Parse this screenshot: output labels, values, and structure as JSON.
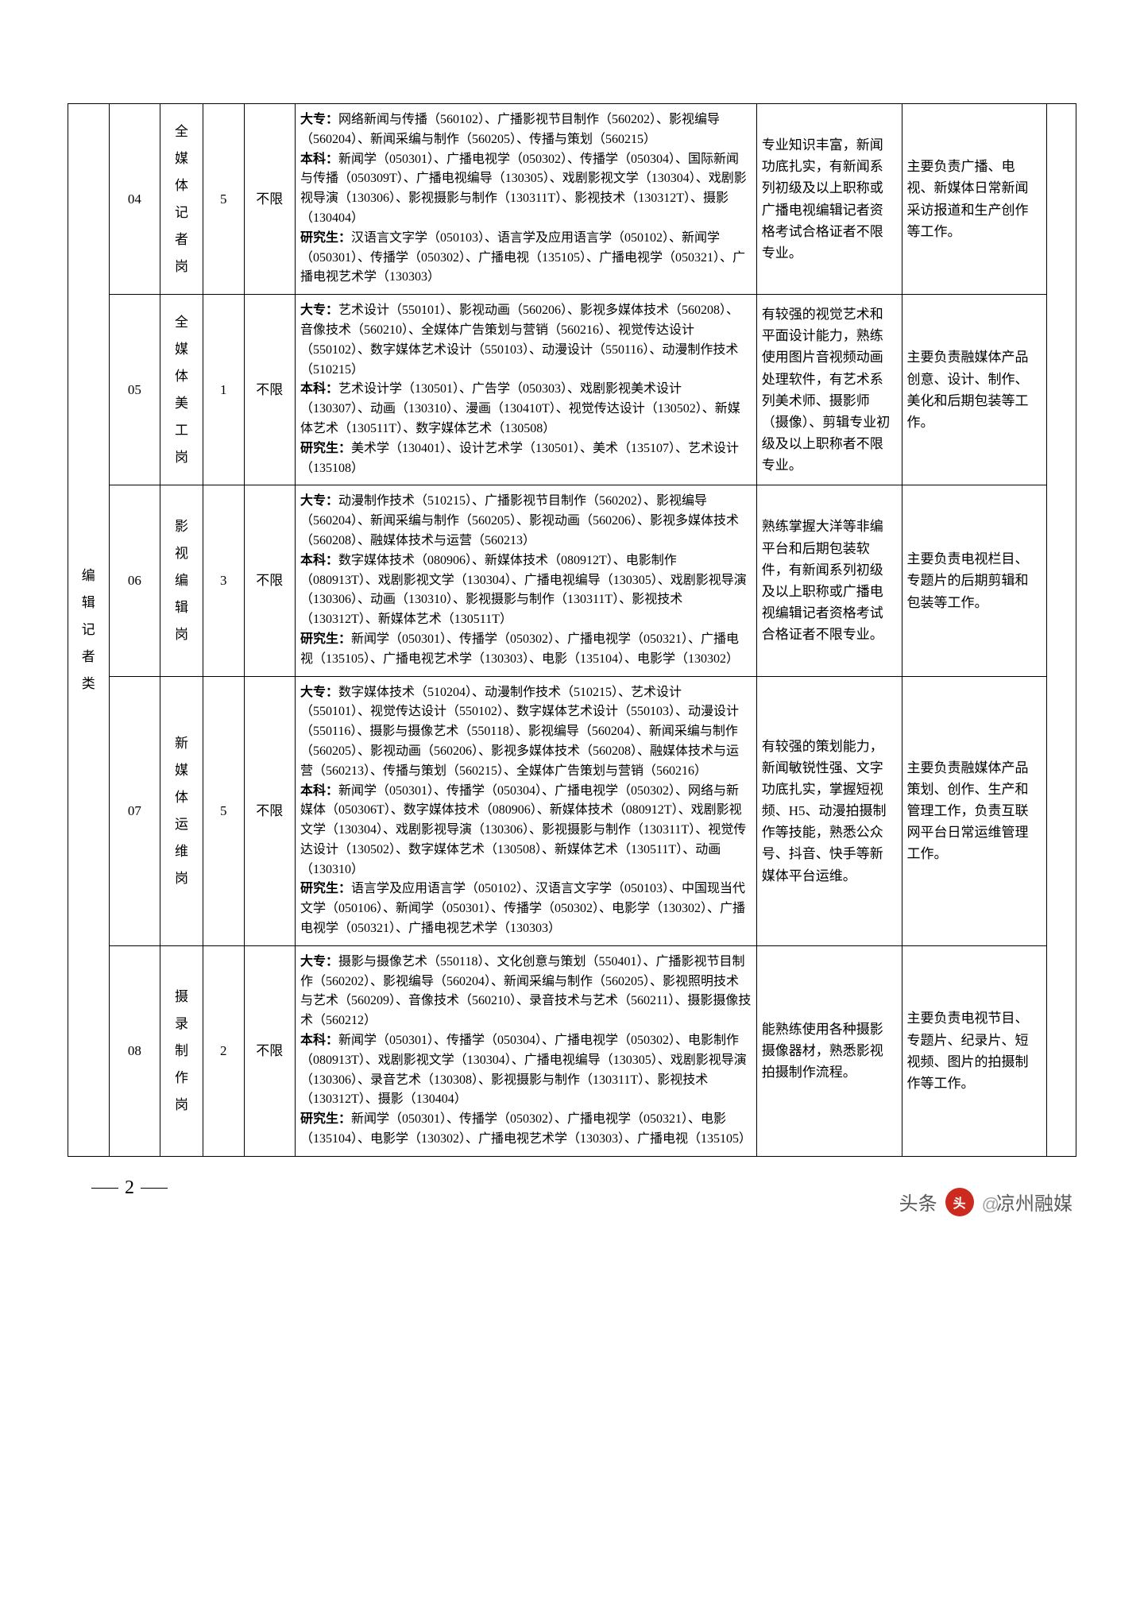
{
  "category": "编辑记者类",
  "page_number": "2",
  "watermark_source": "头条",
  "watermark_at": "@",
  "watermark_name": "凉州融媒",
  "rows": [
    {
      "code": "04",
      "position": "全媒体记者岗",
      "count": "5",
      "limit": "不限",
      "spec": "大专：网络新闻与传播（560102）、广播影视节目制作（560202）、影视编导（560204）、新闻采编与制作（560205）、传播与策划（560215）\n本科：新闻学（050301）、广播电视学（050302）、传播学（050304）、国际新闻与传播（050309T）、广播电视编导（130305）、戏剧影视文学（130304）、戏剧影视导演（130306）、影视摄影与制作（130311T）、影视技术（130312T）、摄影（130404）\n研究生：汉语言文字学（050103）、语言学及应用语言学（050102）、新闻学（050301）、传播学（050302）、广播电视（135105）、广播电视学（050321）、广播电视艺术学（130303）",
      "req": "专业知识丰富，新闻功底扎实，有新闻系列初级及以上职称或广播电视编辑记者资格考试合格证者不限专业。",
      "duty": "主要负责广播、电视、新媒体日常新闻采访报道和生产创作等工作。"
    },
    {
      "code": "05",
      "position": "全媒体美工岗",
      "count": "1",
      "limit": "不限",
      "spec": "大专：艺术设计（550101）、影视动画（560206）、影视多媒体技术（560208）、音像技术（560210）、全媒体广告策划与营销（560216）、视觉传达设计（550102）、数字媒体艺术设计（550103）、动漫设计（550116）、动漫制作技术（510215）\n本科：艺术设计学（130501）、广告学（050303）、戏剧影视美术设计（130307）、动画（130310）、漫画（130410T）、视觉传达设计（130502）、新媒体艺术（130511T）、数字媒体艺术（130508）\n研究生：美术学（130401）、设计艺术学（130501）、美术（135107）、艺术设计（135108）",
      "req": "有较强的视觉艺术和平面设计能力，熟练使用图片音视频动画处理软件，有艺术系列美术师、摄影师（摄像）、剪辑专业初级及以上职称者不限专业。",
      "duty": "主要负责融媒体产品创意、设计、制作、美化和后期包装等工作。"
    },
    {
      "code": "06",
      "position": "影视编辑岗",
      "count": "3",
      "limit": "不限",
      "spec": "大专：动漫制作技术（510215）、广播影视节目制作（560202）、影视编导（560204）、新闻采编与制作（560205）、影视动画（560206）、影视多媒体技术（560208）、融媒体技术与运营（560213）\n本科：数字媒体技术（080906）、新媒体技术（080912T）、电影制作（080913T）、戏剧影视文学（130304）、广播电视编导（130305）、戏剧影视导演（130306）、动画（130310）、影视摄影与制作（130311T）、影视技术（130312T）、新媒体艺术（130511T）\n研究生：新闻学（050301）、传播学（050302）、广播电视学（050321）、广播电视（135105）、广播电视艺术学（130303）、电影（135104）、电影学（130302）",
      "req": "熟练掌握大洋等非编平台和后期包装软件，有新闻系列初级及以上职称或广播电视编辑记者资格考试合格证者不限专业。",
      "duty": "主要负责电视栏目、专题片的后期剪辑和包装等工作。"
    },
    {
      "code": "07",
      "position": "新媒体运维岗",
      "count": "5",
      "limit": "不限",
      "spec": "大专：数字媒体技术（510204）、动漫制作技术（510215）、艺术设计（550101）、视觉传达设计（550102）、数字媒体艺术设计（550103）、动漫设计（550116）、摄影与摄像艺术（550118）、影视编导（560204）、新闻采编与制作（560205）、影视动画（560206）、影视多媒体技术（560208）、融媒体技术与运营（560213）、传播与策划（560215）、全媒体广告策划与营销（560216）\n本科：新闻学（050301）、传播学（050304）、广播电视学（050302）、网络与新媒体（050306T）、数字媒体技术（080906）、新媒体技术（080912T）、戏剧影视文学（130304）、戏剧影视导演（130306）、影视摄影与制作（130311T）、视觉传达设计（130502）、数字媒体艺术（130508）、新媒体艺术（130511T）、动画（130310）\n研究生：语言学及应用语言学（050102）、汉语言文字学（050103）、中国现当代文学（050106）、新闻学（050301）、传播学（050302）、电影学（130302）、广播电视学（050321）、广播电视艺术学（130303）",
      "req": "有较强的策划能力，新闻敏锐性强、文字功底扎实，掌握短视频、H5、动漫拍摄制作等技能，熟悉公众号、抖音、快手等新媒体平台运维。",
      "duty": "主要负责融媒体产品策划、创作、生产和管理工作，负责互联网平台日常运维管理工作。"
    },
    {
      "code": "08",
      "position": "摄录制作岗",
      "count": "2",
      "limit": "不限",
      "spec": "大专：摄影与摄像艺术（550118）、文化创意与策划（550401）、广播影视节目制作（560202）、影视编导（560204）、新闻采编与制作（560205）、影视照明技术与艺术（560209）、音像技术（560210）、录音技术与艺术（560211）、摄影摄像技术（560212）\n本科：新闻学（050301）、传播学（050304）、广播电视学（050302）、电影制作（080913T）、戏剧影视文学（130304）、广播电视编导（130305）、戏剧影视导演（130306）、录音艺术（130308）、影视摄影与制作（130311T）、影视技术（130312T）、摄影（130404）\n研究生：新闻学（050301）、传播学（050302）、广播电视学（050321）、电影（135104）、电影学（130302）、广播电视艺术学（130303）、广播电视（135105）",
      "req": "能熟练使用各种摄影摄像器材，熟悉影视拍摄制作流程。",
      "duty": "主要负责电视节目、专题片、纪录片、短视频、图片的拍摄制作等工作。"
    }
  ]
}
